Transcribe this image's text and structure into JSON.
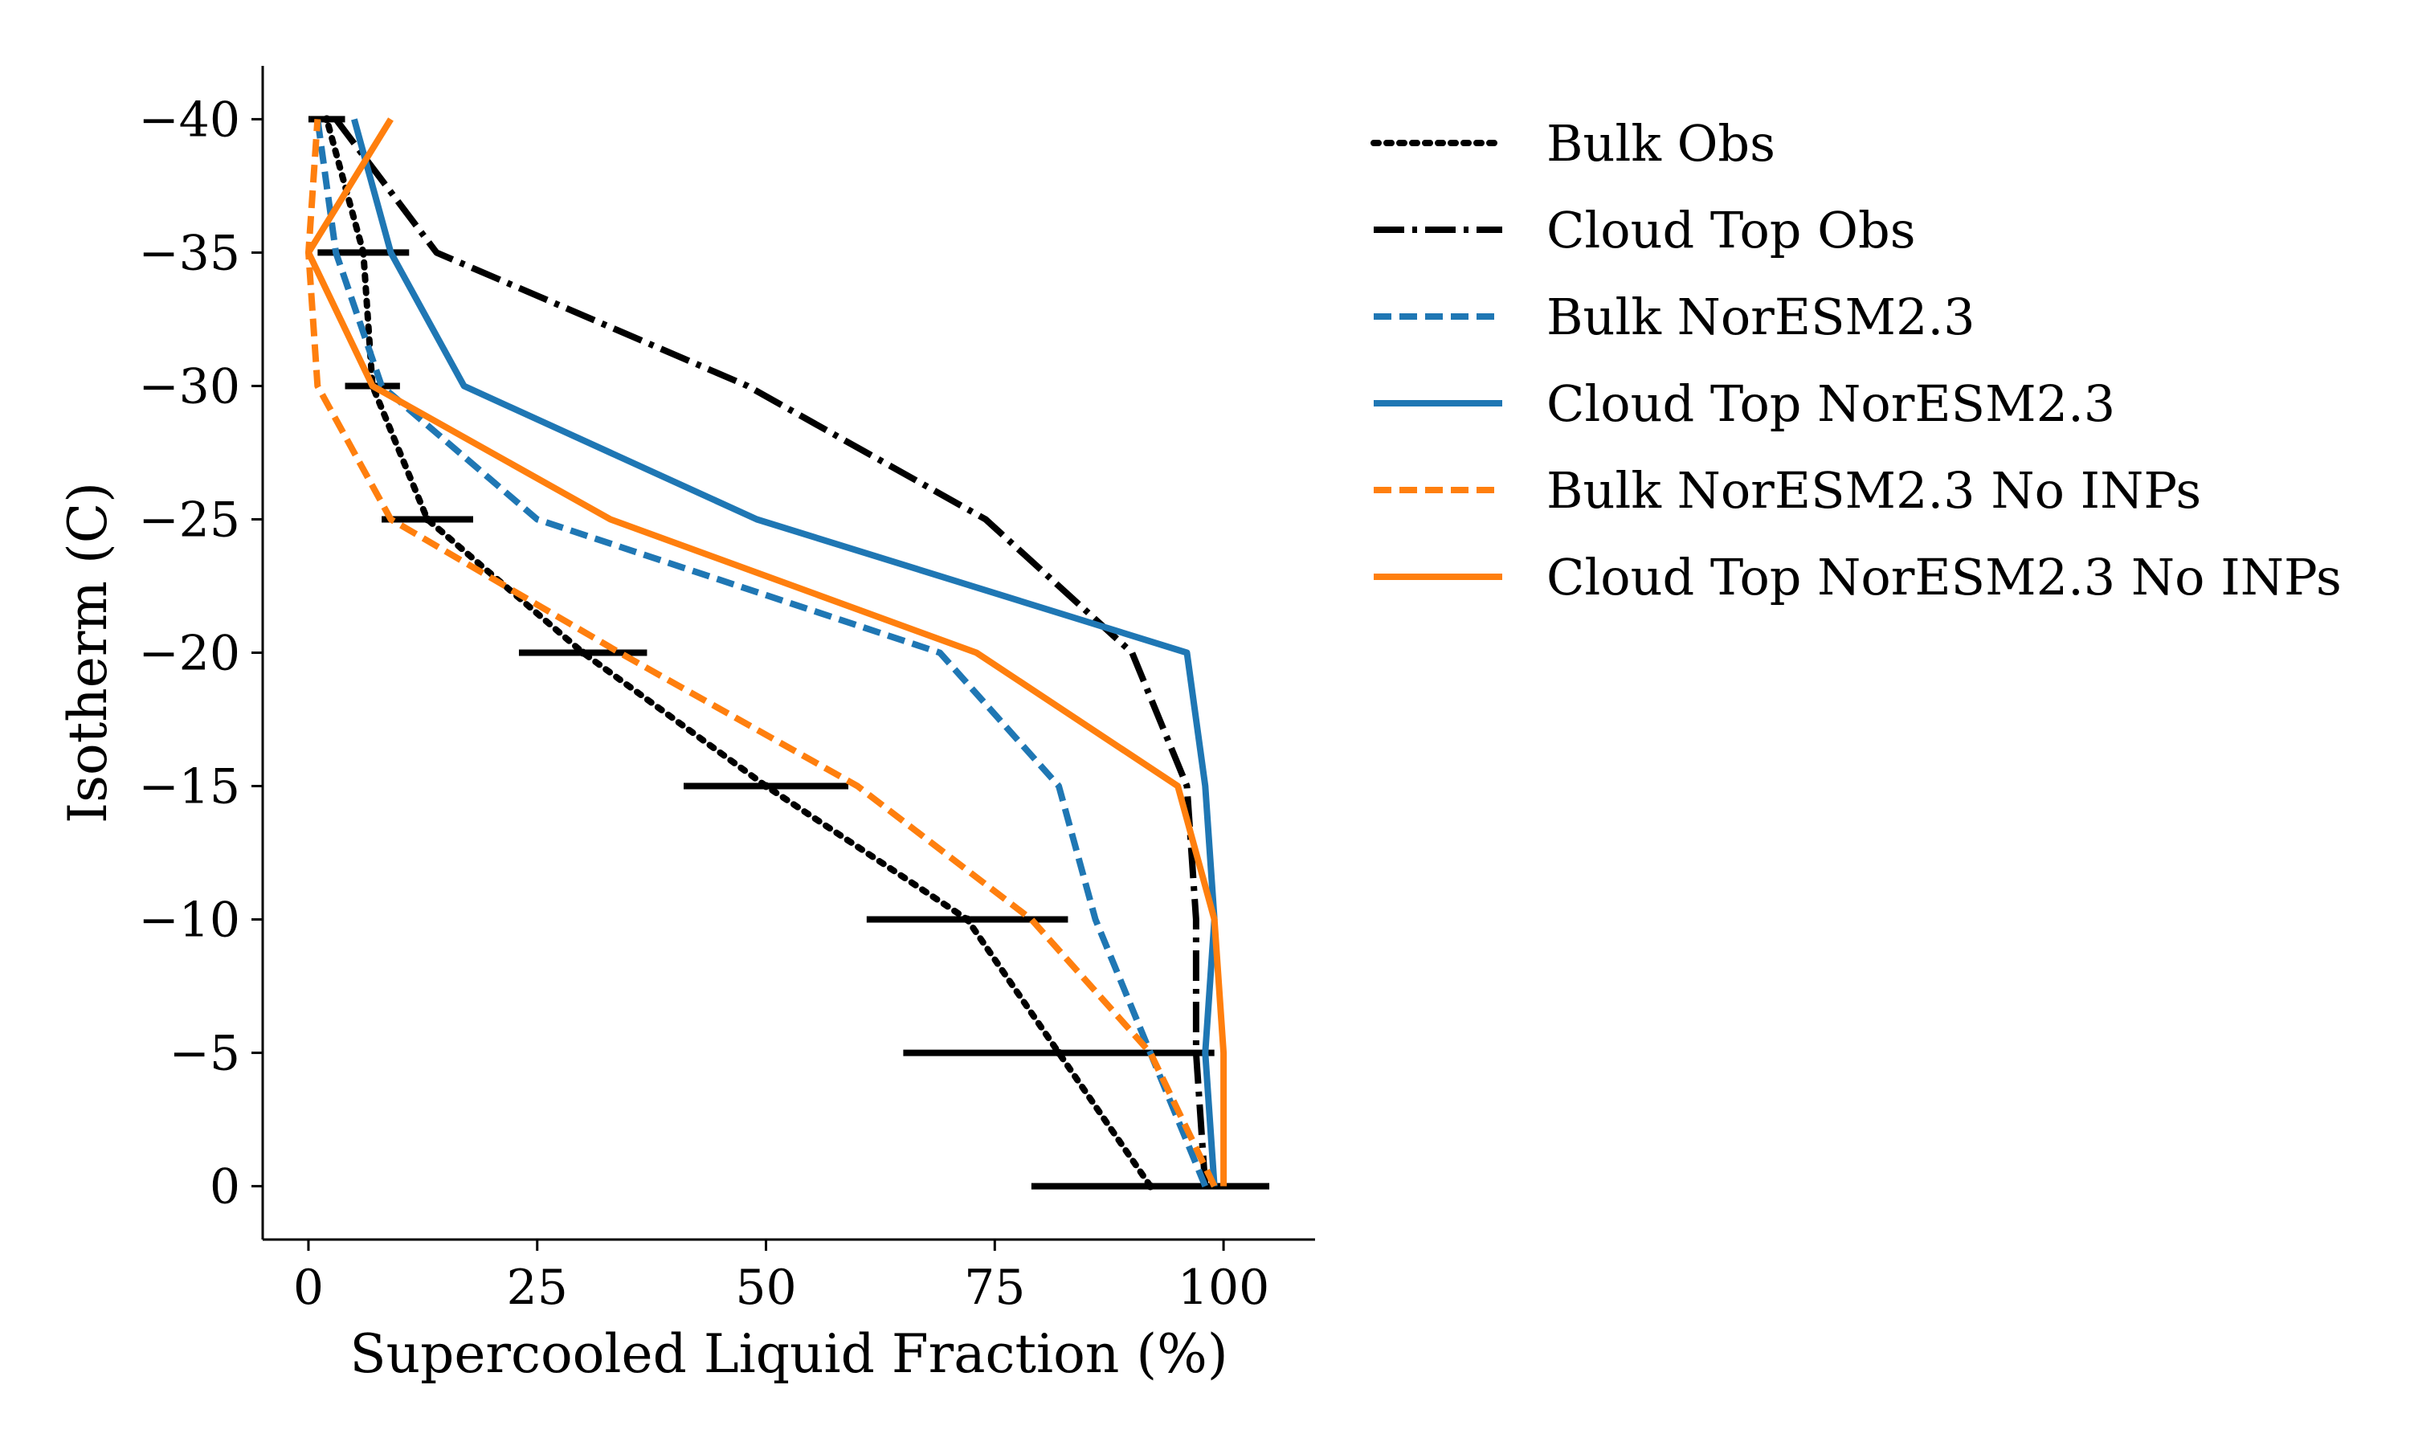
{
  "chart_data": {
    "type": "line",
    "title": "",
    "xlabel": "Supercooled Liquid Fraction (%)",
    "ylabel": "Isotherm (C)",
    "xlim": [
      -5,
      110
    ],
    "ylim": [
      2,
      -42
    ],
    "x_inverted": false,
    "y_inverted": true,
    "xticks": [
      0,
      25,
      50,
      75,
      100
    ],
    "yticks": [
      -40,
      -35,
      -30,
      -25,
      -20,
      -15,
      -10,
      -5,
      0
    ],
    "xtick_labels": [
      "0",
      "25",
      "50",
      "75",
      "100"
    ],
    "ytick_labels": [
      "−40",
      "−35",
      "−30",
      "−25",
      "−20",
      "−15",
      "−10",
      "−5",
      "0"
    ],
    "grid": false,
    "legend_position": "outside-right-top",
    "series": [
      {
        "name": "Bulk Obs",
        "color": "#000000",
        "style": "dotted",
        "x": [
          92,
          82,
          72,
          50,
          30,
          13,
          7,
          6,
          2
        ],
        "y": [
          0,
          -5,
          -10,
          -15,
          -20,
          -25,
          -30,
          -35,
          -40
        ],
        "xerr": [
          13,
          17,
          11,
          9,
          7,
          5,
          3,
          5,
          2
        ]
      },
      {
        "name": "Cloud Top Obs",
        "color": "#000000",
        "style": "dashdot",
        "x": [
          98,
          97,
          97,
          96,
          90,
          74,
          48,
          14,
          3
        ],
        "y": [
          0,
          -5,
          -10,
          -15,
          -20,
          -25,
          -30,
          -35,
          -40
        ]
      },
      {
        "name": "Bulk NorESM2.3",
        "color": "#1f77b4",
        "style": "dashed",
        "x": [
          98,
          92,
          86,
          82,
          69,
          25,
          8,
          3,
          1
        ],
        "y": [
          0,
          -5,
          -10,
          -15,
          -20,
          -25,
          -30,
          -35,
          -40
        ]
      },
      {
        "name": "Cloud Top NorESM2.3",
        "color": "#1f77b4",
        "style": "solid",
        "x": [
          99,
          98,
          99,
          98,
          96,
          49,
          17,
          9,
          5
        ],
        "y": [
          0,
          -5,
          -10,
          -15,
          -20,
          -25,
          -30,
          -35,
          -40
        ]
      },
      {
        "name": "Bulk NorESM2.3 No INPs",
        "color": "#ff7f0e",
        "style": "dashed",
        "x": [
          99,
          92,
          79,
          60,
          34,
          9,
          1,
          0,
          1
        ],
        "y": [
          0,
          -5,
          -10,
          -15,
          -20,
          -25,
          -30,
          -35,
          -40
        ]
      },
      {
        "name": "Cloud Top NorESM2.3 No INPs",
        "color": "#ff7f0e",
        "style": "solid",
        "x": [
          100,
          100,
          99,
          95,
          73,
          33,
          7,
          0,
          9
        ],
        "y": [
          0,
          -5,
          -10,
          -15,
          -20,
          -25,
          -30,
          -35,
          -40
        ]
      }
    ]
  }
}
